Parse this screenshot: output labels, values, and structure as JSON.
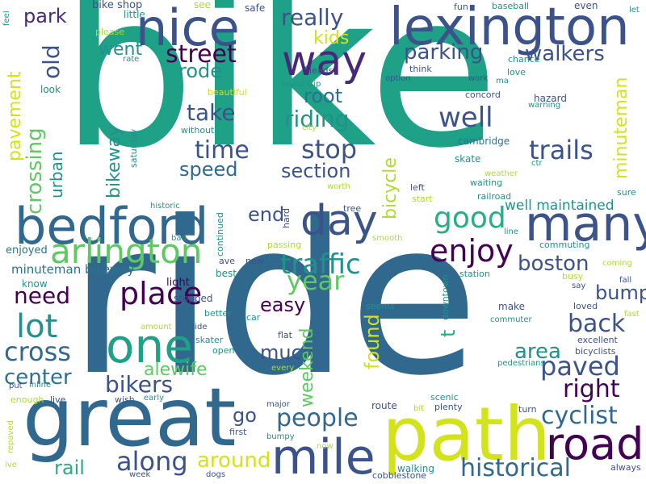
{
  "title": "word cloud",
  "palette": {
    "c0": "#440154",
    "c1": "#3b528b",
    "c2": "#2c728e",
    "c3": "#21918c",
    "c4": "#28ae80",
    "c5": "#5ec962",
    "c6": "#addc30",
    "c7": "#fde725",
    "c8": "#31688e",
    "c9": "#1fa187",
    "c10": "#d2e21b",
    "c11": "#482878"
  },
  "words": [
    {
      "id": "bike",
      "text": "bike",
      "color": "c9"
    },
    {
      "id": "ride",
      "text": "ride",
      "color": "c8"
    },
    {
      "id": "path",
      "text": "path",
      "color": "c10"
    },
    {
      "id": "great",
      "text": "great",
      "color": "c8"
    },
    {
      "id": "lexington",
      "text": "lexington",
      "color": "c1"
    },
    {
      "id": "nice",
      "text": "nice",
      "color": "c1"
    },
    {
      "id": "bedford",
      "text": "bedford",
      "color": "c8"
    },
    {
      "id": "way",
      "text": "way",
      "color": "c11"
    },
    {
      "id": "day",
      "text": "day",
      "color": "c1"
    },
    {
      "id": "many",
      "text": "many",
      "color": "c1"
    },
    {
      "id": "one",
      "text": "one",
      "color": "c9"
    },
    {
      "id": "road",
      "text": "road",
      "color": "c0"
    },
    {
      "id": "mile",
      "text": "mile",
      "color": "c1"
    },
    {
      "id": "arlington",
      "text": "arlington",
      "color": "c5"
    },
    {
      "id": "good",
      "text": "good",
      "color": "c4"
    },
    {
      "id": "enjoy",
      "text": "enjoy",
      "color": "c0"
    },
    {
      "id": "traffic",
      "text": "traffic",
      "color": "c3"
    },
    {
      "id": "place",
      "text": "place",
      "color": "c0"
    },
    {
      "id": "paved",
      "text": "paved",
      "color": "c1"
    },
    {
      "id": "lot",
      "text": "lot",
      "color": "c3"
    },
    {
      "id": "people",
      "text": "people",
      "color": "c8"
    },
    {
      "id": "cross",
      "text": "cross",
      "color": "c8"
    },
    {
      "id": "historical",
      "text": "historical",
      "color": "c8"
    },
    {
      "id": "street",
      "text": "street",
      "color": "c0"
    },
    {
      "id": "really",
      "text": "really",
      "color": "c1"
    },
    {
      "id": "parking",
      "text": "parking",
      "color": "c1"
    },
    {
      "id": "walkers",
      "text": "walkers",
      "color": "c1"
    },
    {
      "id": "well",
      "text": "well",
      "color": "c1"
    },
    {
      "id": "stop",
      "text": "stop",
      "color": "c1"
    },
    {
      "id": "trails",
      "text": "trails",
      "color": "c1"
    },
    {
      "id": "time",
      "text": "time",
      "color": "c1"
    },
    {
      "id": "take",
      "text": "take",
      "color": "c1"
    },
    {
      "id": "riding",
      "text": "riding",
      "color": "c3"
    },
    {
      "id": "root",
      "text": "root",
      "color": "c2"
    },
    {
      "id": "section",
      "text": "section",
      "color": "c1"
    },
    {
      "id": "speed",
      "text": "speed",
      "color": "c8"
    },
    {
      "id": "rode",
      "text": "rode",
      "color": "c3"
    },
    {
      "id": "went",
      "text": "went",
      "color": "c3"
    },
    {
      "id": "park",
      "text": "park",
      "color": "c11"
    },
    {
      "id": "kids",
      "text": "kids",
      "color": "c10"
    },
    {
      "id": "boston",
      "text": "boston",
      "color": "c1"
    },
    {
      "id": "bump",
      "text": "bump",
      "color": "c1"
    },
    {
      "id": "back",
      "text": "back",
      "color": "c1"
    },
    {
      "id": "right",
      "text": "right",
      "color": "c0"
    },
    {
      "id": "cyclist",
      "text": "cyclist",
      "color": "c8"
    },
    {
      "id": "year",
      "text": "year",
      "color": "c5"
    },
    {
      "id": "easy",
      "text": "easy",
      "color": "c0"
    },
    {
      "id": "much",
      "text": "much",
      "color": "c1"
    },
    {
      "id": "need",
      "text": "need",
      "color": "c0"
    },
    {
      "id": "end",
      "text": "end",
      "color": "c1"
    },
    {
      "id": "area",
      "text": "area",
      "color": "c3"
    },
    {
      "id": "center",
      "text": "center",
      "color": "c2"
    },
    {
      "id": "bikers",
      "text": "bikers",
      "color": "c1"
    },
    {
      "id": "alewife",
      "text": "alewife",
      "color": "c5"
    },
    {
      "id": "along",
      "text": "along",
      "color": "c1"
    },
    {
      "id": "around",
      "text": "around",
      "color": "c10"
    },
    {
      "id": "go",
      "text": "go",
      "color": "c1"
    },
    {
      "id": "rail",
      "text": "rail",
      "color": "c4"
    },
    {
      "id": "well-maintained",
      "text": "well maintained",
      "color": "c3"
    },
    {
      "id": "minuteman-bikeway",
      "text": "minuteman bikeway",
      "color": "c2"
    },
    {
      "id": "light",
      "text": "light",
      "color": "c0"
    },
    {
      "id": "stopped",
      "text": "stopped",
      "color": "c1"
    },
    {
      "id": "enjoyed",
      "text": "enjoyed",
      "color": "c2"
    },
    {
      "id": "know",
      "text": "know",
      "color": "c3"
    },
    {
      "id": "bike-shop",
      "text": "bike shop",
      "color": "c1"
    },
    {
      "id": "little",
      "text": "little",
      "color": "c3"
    },
    {
      "id": "see",
      "text": "see",
      "color": "c6"
    },
    {
      "id": "safe",
      "text": "safe",
      "color": "c1"
    },
    {
      "id": "fun",
      "text": "fun",
      "color": "c1"
    },
    {
      "id": "baseball",
      "text": "baseball",
      "color": "c3"
    },
    {
      "id": "even",
      "text": "even",
      "color": "c1"
    },
    {
      "id": "let",
      "text": "let",
      "color": "c3"
    },
    {
      "id": "please",
      "text": "please",
      "color": "c6"
    },
    {
      "id": "rate",
      "text": "rate",
      "color": "c3"
    },
    {
      "id": "leads",
      "text": "leads",
      "color": "c1"
    },
    {
      "id": "chance",
      "text": "chance",
      "color": "c3"
    },
    {
      "id": "think",
      "text": "think",
      "color": "c1"
    },
    {
      "id": "option",
      "text": "option",
      "color": "c1"
    },
    {
      "id": "round-trip",
      "text": "round trip",
      "color": "c3"
    },
    {
      "id": "work",
      "text": "work",
      "color": "c1"
    },
    {
      "id": "love",
      "text": "love",
      "color": "c3"
    },
    {
      "id": "ma",
      "text": "ma",
      "color": "c3"
    },
    {
      "id": "concord",
      "text": "concord",
      "color": "c1"
    },
    {
      "id": "hazard",
      "text": "hazard",
      "color": "c1"
    },
    {
      "id": "warning",
      "text": "warning",
      "color": "c3"
    },
    {
      "id": "city",
      "text": "city",
      "color": "c6"
    },
    {
      "id": "beautiful",
      "text": "beautiful",
      "color": "c10"
    },
    {
      "id": "without",
      "text": "without",
      "color": "c3"
    },
    {
      "id": "cambridge",
      "text": "cambridge",
      "color": "c2"
    },
    {
      "id": "skate",
      "text": "skate",
      "color": "c3"
    },
    {
      "id": "weather",
      "text": "weather",
      "color": "c6"
    },
    {
      "id": "waiting",
      "text": "waiting",
      "color": "c3"
    },
    {
      "id": "ctr",
      "text": "ctr",
      "color": "c3"
    },
    {
      "id": "left",
      "text": "left",
      "color": "c1"
    },
    {
      "id": "start",
      "text": "start",
      "color": "c6"
    },
    {
      "id": "sure",
      "text": "sure",
      "color": "c3"
    },
    {
      "id": "railroad",
      "text": "railroad",
      "color": "c3"
    },
    {
      "id": "worth",
      "text": "worth",
      "color": "c6"
    },
    {
      "id": "tree",
      "text": "tree",
      "color": "c1"
    },
    {
      "id": "historic",
      "text": "historic",
      "color": "c3"
    },
    {
      "id": "bad",
      "text": "bad",
      "color": "c3"
    },
    {
      "id": "smooth",
      "text": "smooth",
      "color": "c6"
    },
    {
      "id": "line",
      "text": "line",
      "color": "c3"
    },
    {
      "id": "commuting",
      "text": "commuting",
      "color": "c3"
    },
    {
      "id": "coming",
      "text": "coming",
      "color": "c6"
    },
    {
      "id": "passing",
      "text": "passing",
      "color": "c6"
    },
    {
      "id": "ave",
      "text": "ave",
      "color": "c1"
    },
    {
      "id": "new",
      "text": "new",
      "color": "c1"
    },
    {
      "id": "best",
      "text": "best",
      "color": "c3"
    },
    {
      "id": "station",
      "text": "station",
      "color": "c3"
    },
    {
      "id": "busy",
      "text": "busy",
      "color": "c6"
    },
    {
      "id": "fall",
      "text": "fall",
      "color": "c1"
    },
    {
      "id": "say",
      "text": "say",
      "color": "c1"
    },
    {
      "id": "seems",
      "text": "seems",
      "color": "c3"
    },
    {
      "id": "make",
      "text": "make",
      "color": "c1"
    },
    {
      "id": "loved",
      "text": "loved",
      "color": "c1"
    },
    {
      "id": "fast",
      "text": "fast",
      "color": "c6"
    },
    {
      "id": "commuter",
      "text": "commuter",
      "color": "c3"
    },
    {
      "id": "excellent",
      "text": "excellent",
      "color": "c1"
    },
    {
      "id": "bicyclists",
      "text": "bicyclists",
      "color": "c1"
    },
    {
      "id": "pedestrians",
      "text": "pedestrians",
      "color": "c3"
    },
    {
      "id": "better",
      "text": "better",
      "color": "c3"
    },
    {
      "id": "amount",
      "text": "amount",
      "color": "c6"
    },
    {
      "id": "side",
      "text": "side",
      "color": "c1"
    },
    {
      "id": "car",
      "text": "car",
      "color": "c3"
    },
    {
      "id": "flat",
      "text": "flat",
      "color": "c1"
    },
    {
      "id": "skater",
      "text": "skater",
      "color": "c3"
    },
    {
      "id": "open",
      "text": "open",
      "color": "c3"
    },
    {
      "id": "every",
      "text": "every",
      "color": "c6"
    },
    {
      "id": "inline",
      "text": "inline",
      "color": "c3"
    },
    {
      "id": "put",
      "text": "put",
      "color": "c1"
    },
    {
      "id": "enough",
      "text": "enough",
      "color": "c6"
    },
    {
      "id": "live",
      "text": "live",
      "color": "c1"
    },
    {
      "id": "wish",
      "text": "wish",
      "color": "c1"
    },
    {
      "id": "early",
      "text": "early",
      "color": "c3"
    },
    {
      "id": "major",
      "text": "major",
      "color": "c1"
    },
    {
      "id": "route",
      "text": "route",
      "color": "c1"
    },
    {
      "id": "scenic",
      "text": "scenic",
      "color": "c3"
    },
    {
      "id": "plenty",
      "text": "plenty",
      "color": "c1"
    },
    {
      "id": "bit",
      "text": "bit",
      "color": "c6"
    },
    {
      "id": "turn",
      "text": "turn",
      "color": "c1"
    },
    {
      "id": "first",
      "text": "first",
      "color": "c1"
    },
    {
      "id": "bumpy",
      "text": "bumpy",
      "color": "c3"
    },
    {
      "id": "now",
      "text": "now",
      "color": "c6"
    },
    {
      "id": "walking",
      "text": "walking",
      "color": "c3"
    },
    {
      "id": "cobblestone",
      "text": "cobblestone",
      "color": "c1"
    },
    {
      "id": "always",
      "text": "always",
      "color": "c1"
    },
    {
      "id": "week",
      "text": "week",
      "color": "c1"
    },
    {
      "id": "dogs",
      "text": "dogs",
      "color": "c1"
    },
    {
      "id": "ive",
      "text": "ive",
      "color": "c6"
    },
    {
      "id": "feel",
      "text": "feel",
      "color": "c3"
    },
    {
      "id": "look",
      "text": "look",
      "color": "c3"
    },
    {
      "id": "old",
      "text": "old",
      "color": "c1"
    },
    {
      "id": "pavement",
      "text": "pavement",
      "color": "c10"
    },
    {
      "id": "crossing",
      "text": "crossing",
      "color": "c5"
    },
    {
      "id": "urban",
      "text": "urban",
      "color": "c3"
    },
    {
      "id": "bikeway",
      "text": "bikeway",
      "color": "c3"
    },
    {
      "id": "saturday",
      "text": "saturday",
      "color": "c3"
    },
    {
      "id": "bicycle",
      "text": "bicycle",
      "color": "c6"
    },
    {
      "id": "weekend",
      "text": "weekend",
      "color": "c5"
    },
    {
      "id": "found",
      "text": "found",
      "color": "c10"
    },
    {
      "id": "t",
      "text": "t",
      "color": "c4"
    },
    {
      "id": "minuteman",
      "text": "minuteman",
      "color": "c10"
    },
    {
      "id": "continued",
      "text": "continued",
      "color": "c3"
    },
    {
      "id": "hard",
      "text": "hard",
      "color": "c1"
    },
    {
      "id": "downtown",
      "text": "downtown",
      "color": "c3"
    },
    {
      "id": "repaved",
      "text": "repaved",
      "color": "c6"
    }
  ]
}
